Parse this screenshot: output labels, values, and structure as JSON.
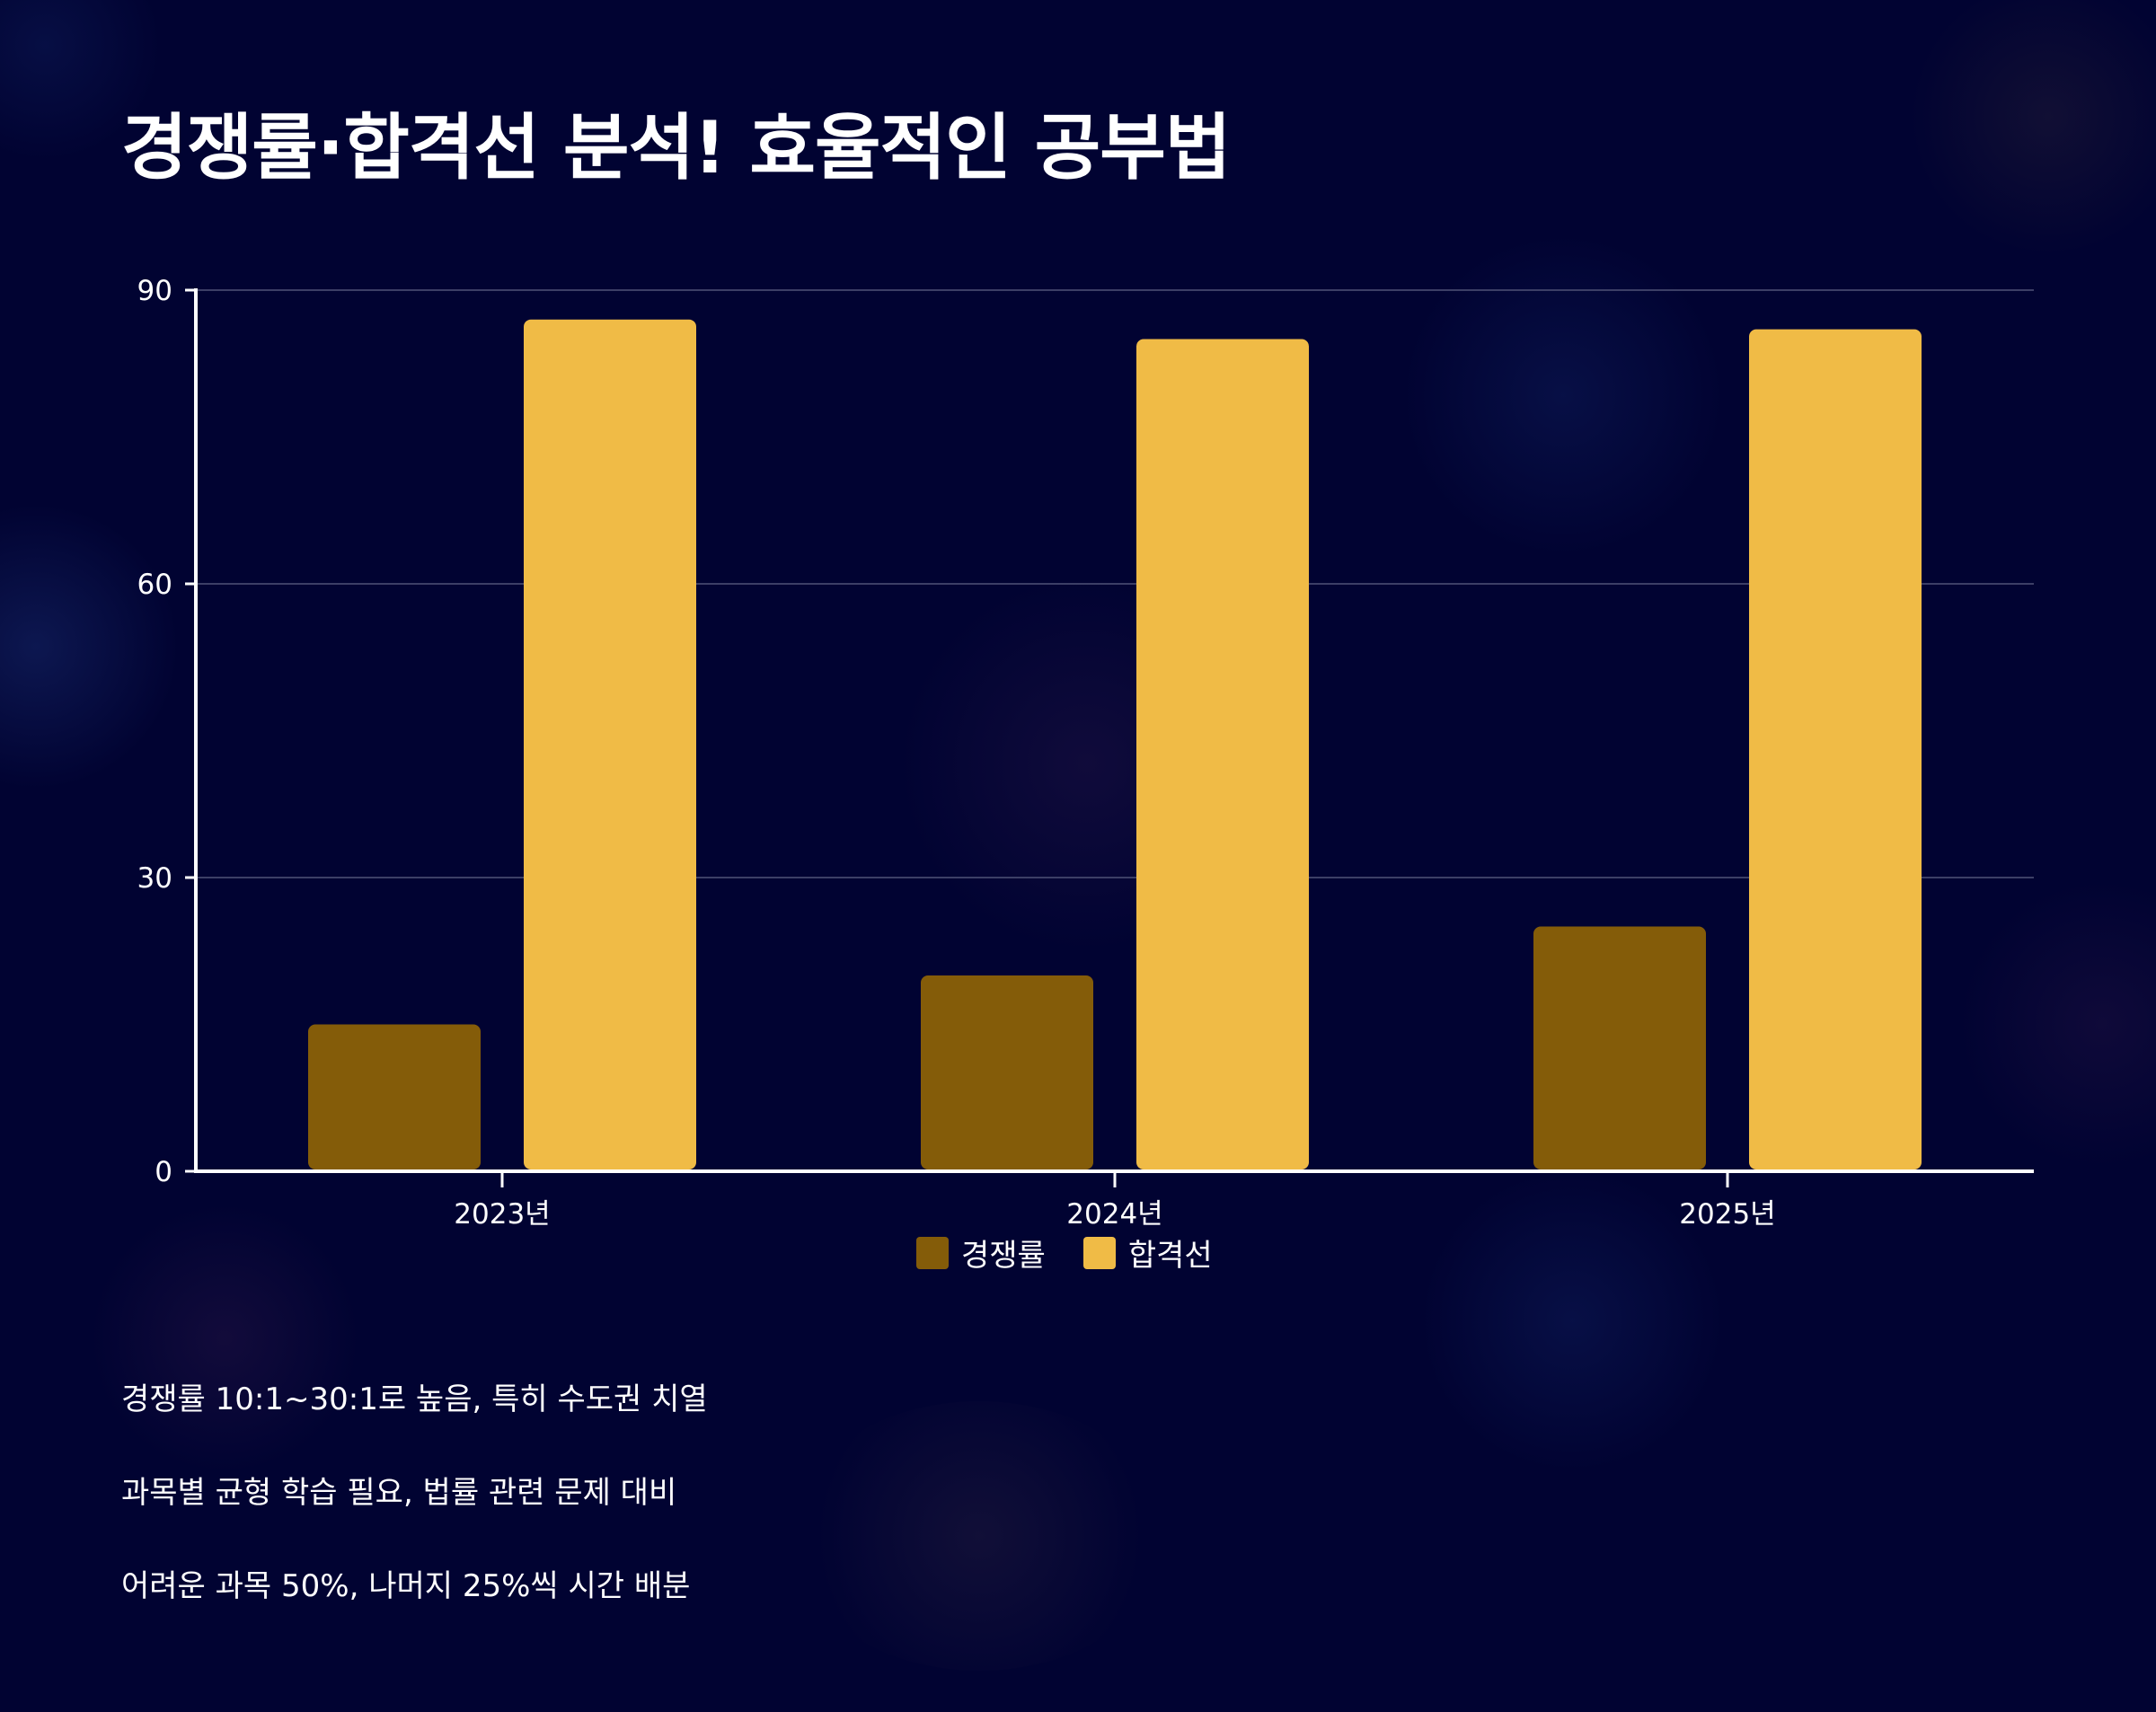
{
  "title": "경쟁률·합격선 분석! 효율적인 공부법",
  "colors": {
    "background": "#010332",
    "series_1": "#845C09",
    "series_2": "#F0BB46",
    "grid": "#3C3F66",
    "axis": "#FFFFFF"
  },
  "chart_data": {
    "type": "bar",
    "categories": [
      "2023년",
      "2024년",
      "2025년"
    ],
    "series": [
      {
        "name": "경쟁률",
        "values": [
          15,
          20,
          25
        ]
      },
      {
        "name": "합격선",
        "values": [
          87,
          85,
          86
        ]
      }
    ],
    "ylim": [
      0,
      90
    ],
    "yticks": [
      0,
      30,
      60,
      90
    ],
    "grid": true,
    "legend_position": "bottom-center",
    "xlabel": "",
    "ylabel": ""
  },
  "notes": [
    "경쟁률 10:1~30:1로 높음, 특히 수도권 치열",
    "과목별 균형 학습 필요, 법률 관련 문제 대비",
    "어려운 과목 50%, 나머지 25%씩 시간 배분"
  ]
}
